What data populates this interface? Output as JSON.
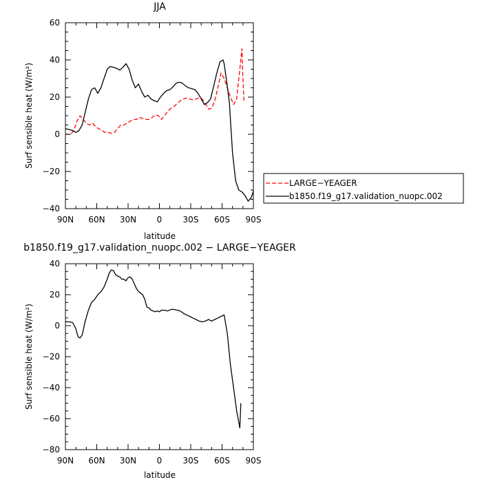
{
  "chart_data": [
    {
      "type": "line",
      "title": "JJA",
      "xlabel": "latitude",
      "ylabel": "Surf sensible heat (W/m²)",
      "x_ticks": [
        "90N",
        "60N",
        "30N",
        "0",
        "30S",
        "60S",
        "90S"
      ],
      "xlim": [
        90,
        -90
      ],
      "ylim": [
        -40,
        60
      ],
      "y_ticks": [
        -40,
        -20,
        0,
        20,
        40,
        60
      ],
      "legend_position": "right",
      "series": [
        {
          "name": "LARGE-YEAGER",
          "color": "#ff0000",
          "style": "dashed",
          "x": [
            90,
            85,
            82,
            79,
            76,
            73,
            70,
            67,
            64,
            61,
            58,
            55,
            52,
            49,
            46,
            43,
            40,
            37,
            34,
            31,
            28,
            25,
            22,
            19,
            16,
            13,
            10,
            7,
            4,
            1,
            -2,
            -5,
            -8,
            -11,
            -14,
            -17,
            -20,
            -23,
            -26,
            -29,
            -32,
            -35,
            -38,
            -41,
            -44,
            -47,
            -50,
            -53,
            -56,
            -59,
            -62,
            -65,
            -68,
            -71,
            -74,
            -77,
            -79,
            -80,
            -81
          ],
          "y": [
            0,
            0,
            2,
            7,
            10,
            8,
            6,
            5,
            6,
            4,
            3,
            2,
            1,
            1,
            0.5,
            1,
            3,
            5,
            5,
            6,
            7,
            8,
            8,
            9,
            8.5,
            8,
            8,
            9,
            10.5,
            10,
            8,
            10,
            12.5,
            14,
            15,
            16.5,
            18,
            19,
            19.5,
            19,
            18.5,
            19,
            19.5,
            19,
            16.5,
            13.5,
            14,
            18,
            25,
            33,
            30,
            25,
            20,
            16,
            19,
            35,
            46,
            30,
            18
          ]
        },
        {
          "name": "b1850.f19_g17.validation_nuopc.002",
          "color": "#000000",
          "style": "solid",
          "x": [
            90,
            86,
            83,
            80,
            77,
            74,
            71,
            68,
            65,
            62,
            59,
            56,
            53,
            50,
            47,
            44,
            41,
            38,
            35,
            32,
            29,
            26,
            23,
            20,
            17,
            14,
            11,
            8,
            5,
            2,
            -1,
            -4,
            -7,
            -10,
            -13,
            -16,
            -19,
            -22,
            -25,
            -28,
            -31,
            -34,
            -37,
            -40,
            -43,
            -46,
            -49,
            -52,
            -55,
            -58,
            -61,
            -62,
            -64,
            -67,
            -70,
            -73,
            -76,
            -79,
            -82,
            -85,
            -88,
            -90
          ],
          "y": [
            3,
            2.5,
            2,
            1,
            2,
            5,
            12,
            19,
            24,
            25,
            22,
            25,
            30,
            35,
            36.5,
            36,
            35.5,
            34.5,
            36,
            38,
            35,
            29,
            25,
            27,
            23,
            20,
            21,
            19,
            18,
            17.5,
            20,
            22,
            23.5,
            24,
            25.5,
            27.5,
            28,
            27.5,
            26,
            25,
            24.5,
            24,
            22,
            19,
            16,
            17,
            19,
            26,
            33,
            39,
            40,
            38,
            30,
            17,
            -10,
            -25,
            -30,
            -31,
            -33,
            -36,
            -34,
            -30.5
          ]
        }
      ]
    },
    {
      "type": "line",
      "title": "b1850.f19_g17.validation_nuopc.002 − LARGE−YEAGER",
      "xlabel": "latitude",
      "ylabel": "Surf sensible heat (W/m²)",
      "x_ticks": [
        "90N",
        "60N",
        "30N",
        "0",
        "30S",
        "60S",
        "90S"
      ],
      "xlim": [
        90,
        -90
      ],
      "ylim": [
        -80,
        40
      ],
      "y_ticks": [
        -80,
        -60,
        -40,
        -20,
        0,
        20,
        40
      ],
      "series": [
        {
          "color": "#000000",
          "style": "solid",
          "x": [
            90,
            86,
            83,
            80,
            78,
            76,
            74,
            71,
            68,
            65,
            62,
            59,
            56,
            53,
            50,
            48,
            46,
            44,
            42,
            40,
            38,
            36,
            34,
            32,
            30,
            28,
            26,
            24,
            22,
            20,
            18,
            16,
            14,
            12,
            10,
            8,
            6,
            4,
            2,
            0,
            -2,
            -5,
            -8,
            -11,
            -14,
            -17,
            -20,
            -23,
            -26,
            -29,
            -32,
            -35,
            -38,
            -41,
            -44,
            -47,
            -50,
            -53,
            -56,
            -59,
            -62,
            -65,
            -68,
            -71,
            -74,
            -77,
            -78
          ],
          "y": [
            2.5,
            2.5,
            2,
            -2,
            -7,
            -8,
            -6,
            3,
            10,
            15,
            17,
            20,
            22,
            25,
            30,
            34,
            36,
            35.5,
            33,
            32,
            31.5,
            30,
            30,
            29,
            31,
            31.5,
            30,
            27,
            24,
            22,
            21,
            20,
            17,
            12,
            11.5,
            10,
            9.5,
            9,
            9.5,
            9,
            10,
            10,
            9.5,
            10.5,
            10.5,
            10,
            9.5,
            8,
            7,
            6,
            5,
            4,
            3,
            2.5,
            3,
            4,
            3,
            4,
            5,
            6,
            7,
            -5,
            -25,
            -40,
            -55,
            -66,
            -50
          ]
        }
      ]
    }
  ],
  "legend": {
    "entries": [
      {
        "label": "LARGE−YEAGER",
        "color": "#ff0000",
        "style": "dashed"
      },
      {
        "label": "b1850.f19_g17.validation_nuopc.002",
        "color": "#000000",
        "style": "solid"
      }
    ]
  }
}
